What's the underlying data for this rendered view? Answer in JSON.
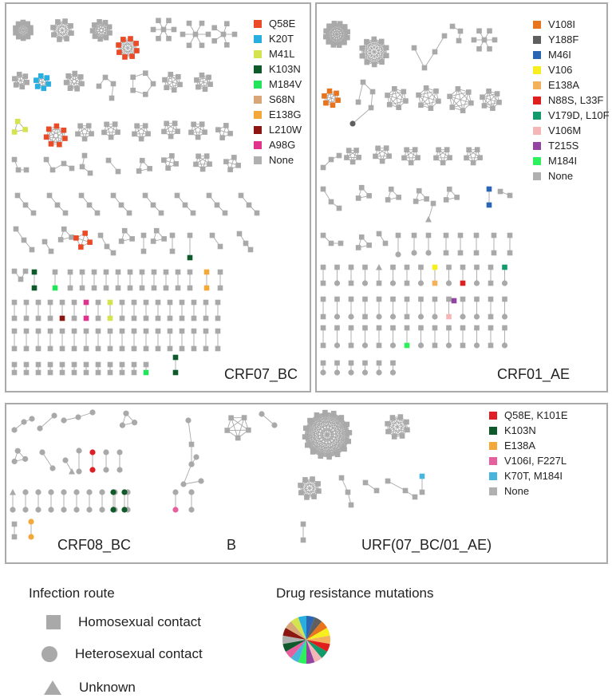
{
  "colors": {
    "node": "#a9a9a9",
    "edge": "#a9a9a9",
    "border": "#a9a9a9"
  },
  "panels": {
    "crf07": {
      "label": "CRF07_BC",
      "legend": [
        {
          "label": "Q58E",
          "color": "#ea4a26"
        },
        {
          "label": "K20T",
          "color": "#29aee0"
        },
        {
          "label": "M41L",
          "color": "#d5e44e"
        },
        {
          "label": "K103N",
          "color": "#0f5a2b"
        },
        {
          "label": "M184V",
          "color": "#22e35a"
        },
        {
          "label": "S68N",
          "color": "#d7a77a"
        },
        {
          "label": "E138G",
          "color": "#f3a83a"
        },
        {
          "label": "L210W",
          "color": "#8c1712"
        },
        {
          "label": "A98G",
          "color": "#e0338e"
        },
        {
          "label": "None",
          "color": "#b0b0b0"
        }
      ]
    },
    "crf01": {
      "label": "CRF01_AE",
      "legend": [
        {
          "label": "V108I",
          "color": "#e8741e"
        },
        {
          "label": "Y188F",
          "color": "#5f5f5f"
        },
        {
          "label": "M46I",
          "color": "#2b66b5"
        },
        {
          "label": "V106",
          "color": "#f6ee1e"
        },
        {
          "label": "E138A",
          "color": "#f3b15c"
        },
        {
          "label": "N88S, L33F",
          "color": "#e01e1e"
        },
        {
          "label": "V179D, L10F",
          "color": "#139a6a"
        },
        {
          "label": "V106M",
          "color": "#f4b6b6"
        },
        {
          "label": "T215S",
          "color": "#9245a0"
        },
        {
          "label": "M184I",
          "color": "#2df05c"
        },
        {
          "label": "None",
          "color": "#b0b0b0"
        }
      ]
    },
    "bottom": {
      "labels": {
        "crf08": "CRF08_BC",
        "b": "B",
        "urf": "URF(07_BC/01_AE)"
      },
      "legend": [
        {
          "label": "Q58E, K101E",
          "color": "#e01e26"
        },
        {
          "label": "K103N",
          "color": "#0f5a2b"
        },
        {
          "label": "E138A",
          "color": "#f3a83a"
        },
        {
          "label": "V106I, F227L",
          "color": "#e6609e"
        },
        {
          "label": "K70T, M184I",
          "color": "#48b6dc"
        },
        {
          "label": "None",
          "color": "#b0b0b0"
        }
      ]
    }
  },
  "infection_route": {
    "title": "Infection route",
    "items": [
      {
        "label": "Homosexual contact",
        "shape": "square"
      },
      {
        "label": "Heterosexual contact",
        "shape": "circle"
      },
      {
        "label": "Unknown",
        "shape": "triangle"
      }
    ]
  },
  "drug_resistance": {
    "title": "Drug resistance mutations",
    "pie_colors": [
      "#2b66b5",
      "#5f5f5f",
      "#e8741e",
      "#f6ee1e",
      "#f3b15c",
      "#e01e1e",
      "#139a6a",
      "#f4b6b6",
      "#9245a0",
      "#2df05c",
      "#48b6dc",
      "#e6609e",
      "#0f5a2b",
      "#b0b0b0",
      "#8c1712",
      "#d7a77a",
      "#d5e44e",
      "#29aee0"
    ]
  }
}
